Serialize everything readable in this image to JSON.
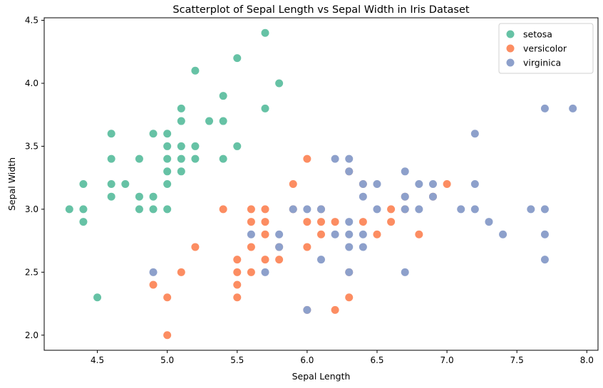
{
  "chart_data": {
    "type": "scatter",
    "title": "Scatterplot of Sepal Length vs Sepal Width in Iris Dataset",
    "xlabel": "Sepal Length",
    "ylabel": "Sepal Width",
    "xlim": [
      4.12,
      8.08
    ],
    "ylim": [
      1.88,
      4.52
    ],
    "xticks": [
      4.5,
      5.0,
      5.5,
      6.0,
      6.5,
      7.0,
      7.5,
      8.0
    ],
    "xtick_labels": [
      "4.5",
      "5.0",
      "5.5",
      "6.0",
      "6.5",
      "7.0",
      "7.5",
      "8.0"
    ],
    "yticks": [
      2.0,
      2.5,
      3.0,
      3.5,
      4.0,
      4.5
    ],
    "ytick_labels": [
      "2.0",
      "2.5",
      "3.0",
      "3.5",
      "4.0",
      "4.5"
    ],
    "grid": false,
    "legend_position": "top-right",
    "series": [
      {
        "name": "setosa",
        "color": "#66c2a5",
        "points": [
          [
            4.3,
            3.0
          ],
          [
            4.4,
            3.0
          ],
          [
            4.4,
            2.9
          ],
          [
            4.4,
            3.2
          ],
          [
            4.5,
            2.3
          ],
          [
            4.6,
            3.1
          ],
          [
            4.6,
            3.2
          ],
          [
            4.6,
            3.4
          ],
          [
            4.6,
            3.6
          ],
          [
            4.7,
            3.2
          ],
          [
            4.8,
            3.0
          ],
          [
            4.8,
            3.1
          ],
          [
            4.8,
            3.4
          ],
          [
            4.9,
            3.0
          ],
          [
            4.9,
            3.1
          ],
          [
            4.9,
            3.6
          ],
          [
            5.0,
            3.0
          ],
          [
            5.0,
            3.2
          ],
          [
            5.0,
            3.3
          ],
          [
            5.0,
            3.4
          ],
          [
            5.0,
            3.5
          ],
          [
            5.0,
            3.6
          ],
          [
            5.1,
            3.3
          ],
          [
            5.1,
            3.4
          ],
          [
            5.1,
            3.5
          ],
          [
            5.1,
            3.7
          ],
          [
            5.1,
            3.8
          ],
          [
            5.2,
            3.4
          ],
          [
            5.2,
            3.5
          ],
          [
            5.2,
            4.1
          ],
          [
            5.3,
            3.7
          ],
          [
            5.4,
            3.4
          ],
          [
            5.4,
            3.7
          ],
          [
            5.4,
            3.9
          ],
          [
            5.5,
            3.5
          ],
          [
            5.5,
            4.2
          ],
          [
            5.7,
            3.8
          ],
          [
            5.7,
            4.4
          ],
          [
            5.8,
            4.0
          ]
        ]
      },
      {
        "name": "versicolor",
        "color": "#fc8d62",
        "points": [
          [
            4.9,
            2.4
          ],
          [
            5.0,
            2.0
          ],
          [
            5.0,
            2.3
          ],
          [
            5.1,
            2.5
          ],
          [
            5.2,
            2.7
          ],
          [
            5.4,
            3.0
          ],
          [
            5.5,
            2.3
          ],
          [
            5.5,
            2.4
          ],
          [
            5.5,
            2.5
          ],
          [
            5.5,
            2.6
          ],
          [
            5.6,
            2.5
          ],
          [
            5.6,
            2.7
          ],
          [
            5.6,
            2.9
          ],
          [
            5.6,
            3.0
          ],
          [
            5.7,
            2.6
          ],
          [
            5.7,
            2.8
          ],
          [
            5.7,
            2.9
          ],
          [
            5.7,
            3.0
          ],
          [
            5.8,
            2.6
          ],
          [
            5.8,
            2.7
          ],
          [
            5.9,
            3.0
          ],
          [
            5.9,
            3.2
          ],
          [
            6.0,
            2.2
          ],
          [
            6.0,
            2.7
          ],
          [
            6.0,
            2.9
          ],
          [
            6.0,
            3.4
          ],
          [
            6.1,
            2.8
          ],
          [
            6.1,
            2.9
          ],
          [
            6.1,
            3.0
          ],
          [
            6.2,
            2.2
          ],
          [
            6.2,
            2.9
          ],
          [
            6.3,
            2.3
          ],
          [
            6.3,
            2.5
          ],
          [
            6.3,
            3.3
          ],
          [
            6.4,
            2.9
          ],
          [
            6.4,
            3.2
          ],
          [
            6.5,
            2.8
          ],
          [
            6.6,
            2.9
          ],
          [
            6.6,
            3.0
          ],
          [
            6.7,
            3.0
          ],
          [
            6.7,
            3.1
          ],
          [
            6.8,
            2.8
          ],
          [
            6.9,
            3.1
          ],
          [
            7.0,
            3.2
          ]
        ]
      },
      {
        "name": "virginica",
        "color": "#8da0cb",
        "points": [
          [
            4.9,
            2.5
          ],
          [
            5.6,
            2.8
          ],
          [
            5.7,
            2.5
          ],
          [
            5.8,
            2.7
          ],
          [
            5.8,
            2.8
          ],
          [
            5.9,
            3.0
          ],
          [
            6.0,
            2.2
          ],
          [
            6.0,
            3.0
          ],
          [
            6.1,
            2.6
          ],
          [
            6.1,
            3.0
          ],
          [
            6.2,
            2.8
          ],
          [
            6.2,
            3.4
          ],
          [
            6.3,
            2.5
          ],
          [
            6.3,
            2.7
          ],
          [
            6.3,
            2.8
          ],
          [
            6.3,
            2.9
          ],
          [
            6.3,
            3.3
          ],
          [
            6.3,
            3.4
          ],
          [
            6.4,
            2.7
          ],
          [
            6.4,
            2.8
          ],
          [
            6.4,
            3.1
          ],
          [
            6.4,
            3.2
          ],
          [
            6.5,
            3.0
          ],
          [
            6.5,
            3.2
          ],
          [
            6.7,
            2.5
          ],
          [
            6.7,
            3.0
          ],
          [
            6.7,
            3.1
          ],
          [
            6.7,
            3.3
          ],
          [
            6.8,
            3.0
          ],
          [
            6.8,
            3.2
          ],
          [
            6.9,
            3.1
          ],
          [
            6.9,
            3.2
          ],
          [
            7.1,
            3.0
          ],
          [
            7.2,
            3.0
          ],
          [
            7.2,
            3.2
          ],
          [
            7.2,
            3.6
          ],
          [
            7.3,
            2.9
          ],
          [
            7.4,
            2.8
          ],
          [
            7.6,
            3.0
          ],
          [
            7.7,
            2.6
          ],
          [
            7.7,
            2.8
          ],
          [
            7.7,
            3.0
          ],
          [
            7.7,
            3.8
          ],
          [
            7.9,
            3.8
          ]
        ]
      }
    ]
  }
}
